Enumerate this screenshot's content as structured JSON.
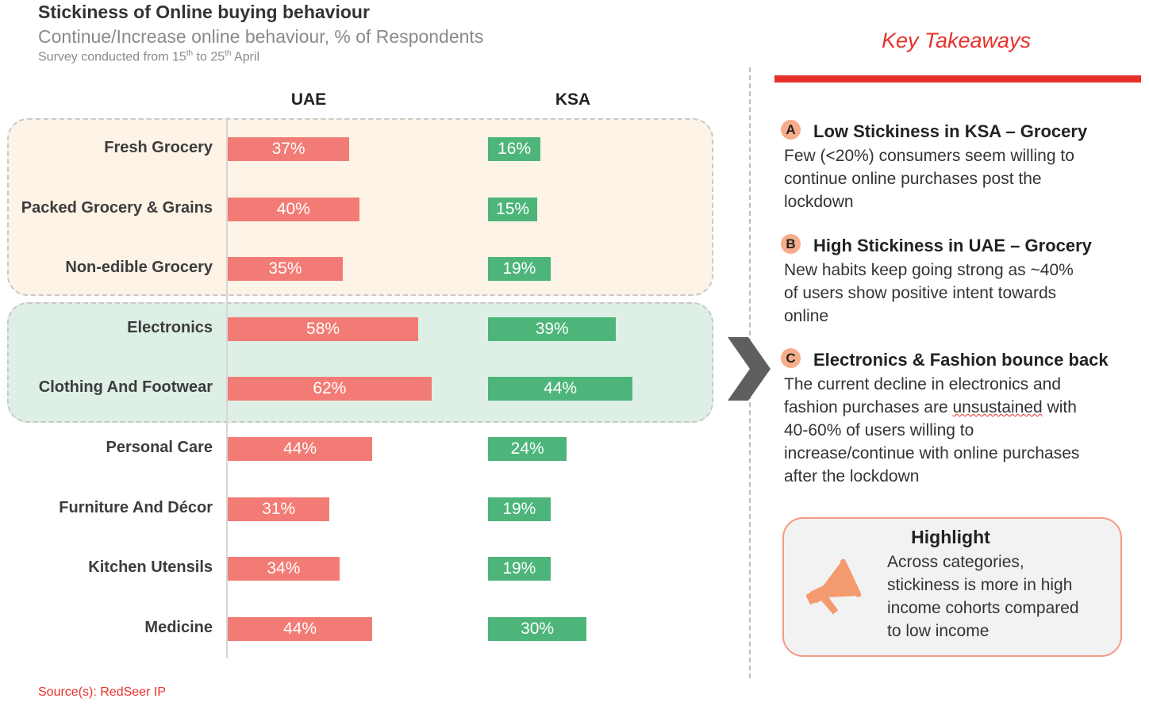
{
  "header": {
    "title": "Stickiness of Online buying behaviour",
    "subtitle": "Continue/Increase online behaviour, % of Respondents",
    "survey_prefix": "Survey conducted from 15",
    "survey_sup1": "th",
    "survey_mid": " to 25",
    "survey_sup2": "th",
    "survey_suffix": " April"
  },
  "chart_data": {
    "type": "bar",
    "orientation": "horizontal",
    "title": "Stickiness of Online buying behaviour",
    "subtitle": "Continue/Increase online behaviour, % of Respondents",
    "categories": [
      "Fresh Grocery",
      "Packed Grocery & Grains",
      "Non-edible Grocery",
      "Electronics",
      "Clothing And Footwear",
      "Personal Care",
      "Furniture And Décor",
      "Kitchen Utensils",
      "Medicine"
    ],
    "series": [
      {
        "name": "UAE",
        "values": [
          37,
          40,
          35,
          58,
          62,
          44,
          31,
          34,
          44
        ],
        "labels": [
          "37%",
          "40%",
          "35%",
          "58%",
          "62%",
          "44%",
          "31%",
          "34%",
          "44%"
        ],
        "color": "#f27c75"
      },
      {
        "name": "KSA",
        "values": [
          16,
          15,
          19,
          39,
          44,
          24,
          19,
          19,
          30
        ],
        "labels": [
          "16%",
          "15%",
          "19%",
          "39%",
          "44%",
          "24%",
          "19%",
          "19%",
          "30%"
        ],
        "color": "#4db57a"
      }
    ],
    "unit": "%",
    "groups": [
      {
        "categories": [
          "Fresh Grocery",
          "Packed Grocery & Grains",
          "Non-edible Grocery"
        ],
        "color": "#fdf3e6"
      },
      {
        "categories": [
          "Electronics",
          "Clothing And Footwear"
        ],
        "color": "#deefe6"
      }
    ]
  },
  "takeaways": {
    "title": "Key Takeaways",
    "accent_color": "#e8302a",
    "items": [
      {
        "badge": "A",
        "title": "Low Stickiness in KSA – Grocery",
        "lines": [
          "Few (<20%) consumers seem willing to",
          "continue online purchases post the",
          "lockdown"
        ]
      },
      {
        "badge": "B",
        "title": "High Stickiness in UAE – Grocery",
        "lines": [
          "New habits keep going strong as ~40%",
          "of users show positive intent towards",
          "online"
        ]
      },
      {
        "badge": "C",
        "title": "Electronics & Fashion bounce back",
        "lines": [
          "The current decline in electronics and",
          "fashion purchases are unsustained with",
          "40-60% of users willing to",
          "increase/continue with online purchases",
          "after the lockdown"
        ]
      }
    ],
    "c_line2_before": "fashion purchases are ",
    "c_line2_word": "unsustained",
    "c_line2_after": " with"
  },
  "highlight": {
    "icon": "megaphone-icon",
    "title": "Highlight",
    "lines": [
      "Across categories,",
      "stickiness is more in high",
      "income cohorts compared",
      "to low income"
    ]
  },
  "footer": {
    "source": "Source(s): RedSeer IP"
  }
}
